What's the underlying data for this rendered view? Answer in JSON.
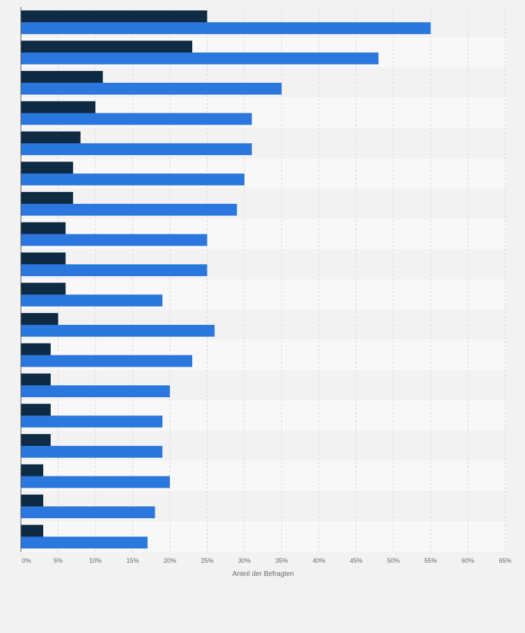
{
  "chart_data": {
    "type": "bar",
    "orientation": "horizontal",
    "title": "",
    "xlabel": "Anteil der Befragten",
    "ylabel": "",
    "xlim": [
      0,
      65
    ],
    "x_ticks": [
      "0%",
      "5%",
      "10%",
      "15%",
      "20%",
      "25%",
      "30%",
      "35%",
      "40%",
      "45%",
      "50%",
      "55%",
      "60%",
      "65%"
    ],
    "grid": "vertical dashed",
    "categories": [
      "",
      "",
      "",
      "",
      "",
      "",
      "",
      "",
      "",
      "",
      "",
      "",
      "",
      "",
      "",
      "",
      "",
      ""
    ],
    "series": [
      {
        "values": [
          25,
          23,
          11,
          10,
          8,
          7,
          7,
          6,
          6,
          6,
          5,
          4,
          4,
          4,
          4,
          3,
          3,
          3
        ]
      },
      {
        "values": [
          55,
          48,
          35,
          31,
          31,
          30,
          29,
          25,
          25,
          19,
          26,
          23,
          20,
          19,
          19,
          20,
          18,
          17
        ]
      }
    ],
    "colors": {
      "series_1": "#0f2a43",
      "series_2": "#2a78dd",
      "band_dark": "#f2f2f2",
      "band_light": "#f8f8f8",
      "grid": "#d6d6d6",
      "axis": "#555555"
    }
  }
}
